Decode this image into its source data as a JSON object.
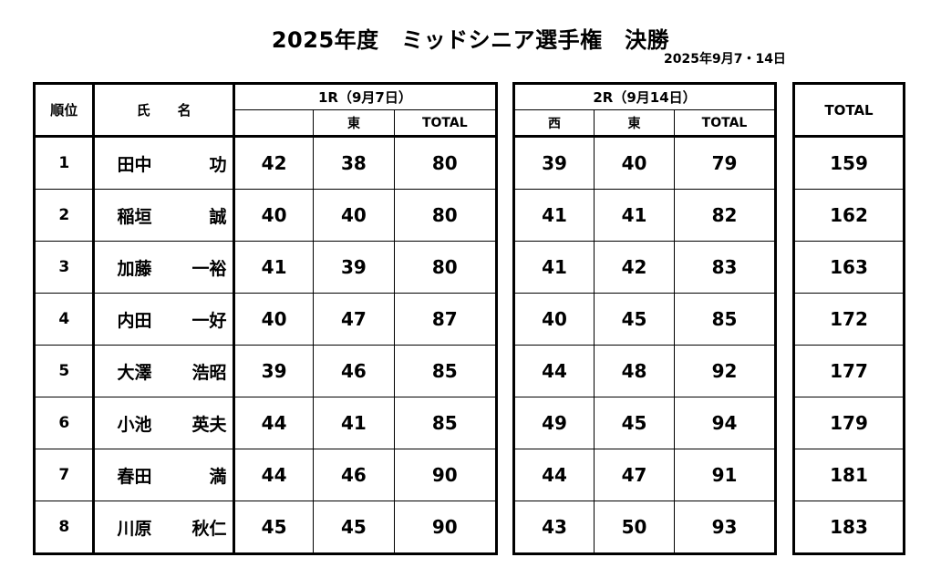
{
  "title": "2025年度　ミッドシニア選手権　決勝",
  "date": "2025年9月7・14日",
  "headers": {
    "rank": "順位",
    "name": "氏　　名",
    "round1": "1R（9月7日）",
    "round1_east": "東",
    "round1_total": "TOTAL",
    "round2": "2R（9月14日）",
    "round2_west": "西",
    "round2_east": "東",
    "round2_total": "TOTAL",
    "total": "TOTAL"
  },
  "rows": [
    {
      "rank": "1",
      "family": "田中",
      "given": "功",
      "r1a": "42",
      "r1b": "38",
      "r1t": "80",
      "r2a": "39",
      "r2b": "40",
      "r2t": "79",
      "total": "159"
    },
    {
      "rank": "2",
      "family": "稲垣",
      "given": "誠",
      "r1a": "40",
      "r1b": "40",
      "r1t": "80",
      "r2a": "41",
      "r2b": "41",
      "r2t": "82",
      "total": "162"
    },
    {
      "rank": "3",
      "family": "加藤",
      "given": "一裕",
      "r1a": "41",
      "r1b": "39",
      "r1t": "80",
      "r2a": "41",
      "r2b": "42",
      "r2t": "83",
      "total": "163"
    },
    {
      "rank": "4",
      "family": "内田",
      "given": "一好",
      "r1a": "40",
      "r1b": "47",
      "r1t": "87",
      "r2a": "40",
      "r2b": "45",
      "r2t": "85",
      "total": "172"
    },
    {
      "rank": "5",
      "family": "大澤",
      "given": "浩昭",
      "r1a": "39",
      "r1b": "46",
      "r1t": "85",
      "r2a": "44",
      "r2b": "48",
      "r2t": "92",
      "total": "177"
    },
    {
      "rank": "6",
      "family": "小池",
      "given": "英夫",
      "r1a": "44",
      "r1b": "41",
      "r1t": "85",
      "r2a": "49",
      "r2b": "45",
      "r2t": "94",
      "total": "179"
    },
    {
      "rank": "7",
      "family": "春田",
      "given": "満",
      "r1a": "44",
      "r1b": "46",
      "r1t": "90",
      "r2a": "44",
      "r2b": "47",
      "r2t": "91",
      "total": "181"
    },
    {
      "rank": "8",
      "family": "川原",
      "given": "秋仁",
      "r1a": "45",
      "r1b": "45",
      "r1t": "90",
      "r2a": "43",
      "r2b": "50",
      "r2t": "93",
      "total": "183"
    }
  ]
}
